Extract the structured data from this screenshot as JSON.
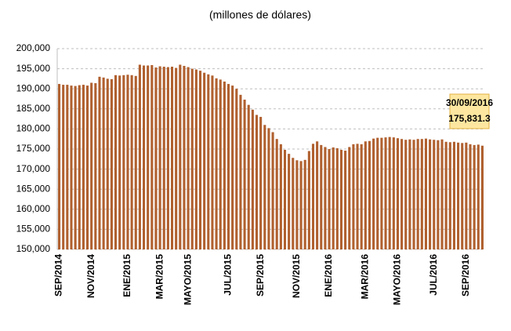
{
  "chart_data": {
    "type": "bar",
    "subtitle": "(millones de dólares)",
    "categories": [
      "SEP/2014",
      null,
      null,
      null,
      null,
      null,
      null,
      null,
      "NOV/2014",
      null,
      null,
      null,
      null,
      null,
      null,
      null,
      null,
      "ENE/2015",
      null,
      null,
      null,
      null,
      null,
      null,
      null,
      "MAR/2015",
      null,
      null,
      null,
      null,
      null,
      null,
      "MAYO/2015",
      null,
      null,
      null,
      null,
      null,
      null,
      null,
      null,
      null,
      "JUL/2015",
      null,
      null,
      null,
      null,
      null,
      null,
      null,
      "SEP/2015",
      null,
      null,
      null,
      null,
      null,
      null,
      null,
      null,
      "NOV/2015",
      null,
      null,
      null,
      null,
      null,
      null,
      null,
      "ENE/2016",
      null,
      null,
      null,
      null,
      null,
      null,
      null,
      null,
      "MAR/2016",
      null,
      null,
      null,
      null,
      null,
      null,
      null,
      "MAYO/2016",
      null,
      null,
      null,
      null,
      null,
      null,
      null,
      null,
      "JUL/2016",
      null,
      null,
      null,
      null,
      null,
      null,
      null,
      "SEP/2016",
      null,
      null,
      null,
      null
    ],
    "values": [
      191200,
      191000,
      191000,
      190800,
      190700,
      190900,
      191000,
      190800,
      191500,
      191400,
      193000,
      192800,
      192500,
      192400,
      193400,
      193300,
      193400,
      193500,
      193400,
      193200,
      196000,
      195800,
      195800,
      195900,
      195300,
      195600,
      195500,
      195400,
      195500,
      195200,
      196000,
      195700,
      195400,
      195000,
      194800,
      194500,
      194000,
      193600,
      193300,
      192600,
      192300,
      191800,
      191200,
      190800,
      190000,
      188500,
      187300,
      186000,
      184800,
      183500,
      183000,
      181000,
      180200,
      179200,
      177500,
      176200,
      174800,
      173800,
      172800,
      172200,
      172000,
      172300,
      174500,
      176300,
      176900,
      176000,
      175500,
      175000,
      175400,
      175200,
      174800,
      174600,
      175500,
      176200,
      176300,
      176200,
      176900,
      177000,
      177600,
      177800,
      177800,
      177900,
      178000,
      177900,
      177700,
      177500,
      177300,
      177400,
      177300,
      177500,
      177500,
      177600,
      177400,
      177300,
      177200,
      177400,
      176800,
      176700,
      176800,
      176600,
      176500,
      176600,
      176200,
      176000,
      176100,
      175831.3
    ],
    "color": "#b0602f",
    "ylim": [
      150000,
      200000
    ],
    "yticks": [
      {
        "value": 150000,
        "label": "150,000"
      },
      {
        "value": 155000,
        "label": "155,000"
      },
      {
        "value": 160000,
        "label": "160,000"
      },
      {
        "value": 165000,
        "label": "165,000"
      },
      {
        "value": 170000,
        "label": "170,000"
      },
      {
        "value": 175000,
        "label": "175,000"
      },
      {
        "value": 180000,
        "label": "180,000"
      },
      {
        "value": 185000,
        "label": "185,000"
      },
      {
        "value": 190000,
        "label": "190,000"
      },
      {
        "value": 195000,
        "label": "195,000"
      },
      {
        "value": 200000,
        "label": "200,000"
      }
    ],
    "grid": true,
    "annotation": {
      "date": "30/09/2016",
      "value_label": "175,831.3"
    }
  }
}
